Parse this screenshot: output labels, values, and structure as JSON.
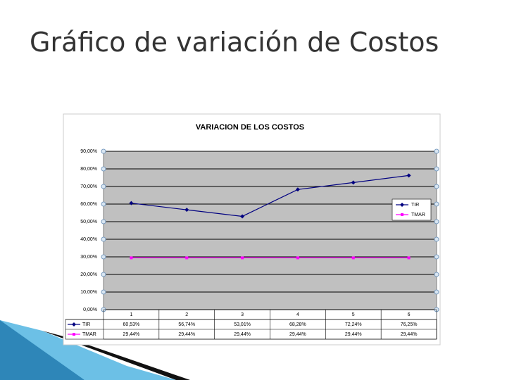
{
  "title": "Gráfico de variación de Costos",
  "chart_data": {
    "type": "line",
    "title": "VARIACION DE LOS COSTOS",
    "categories": [
      "1",
      "2",
      "3",
      "4",
      "5",
      "6"
    ],
    "series": [
      {
        "name": "TIR",
        "color": "#000080",
        "marker": "diamond",
        "values": [
          60.53,
          56.74,
          53.01,
          68.28,
          72.24,
          76.25
        ],
        "value_labels": [
          "60,53%",
          "56,74%",
          "53,01%",
          "68,28%",
          "72,24%",
          "76,25%"
        ]
      },
      {
        "name": "TMAR",
        "color": "#ff00ff",
        "marker": "square",
        "values": [
          29.44,
          29.44,
          29.44,
          29.44,
          29.44,
          29.44
        ],
        "value_labels": [
          "29,44%",
          "29,44%",
          "29,44%",
          "29,44%",
          "29,44%",
          "29,44%"
        ]
      }
    ],
    "ylim": [
      0,
      90
    ],
    "yticks": [
      {
        "value": 0,
        "label": "0,00%"
      },
      {
        "value": 10,
        "label": "10,00%"
      },
      {
        "value": 20,
        "label": "20,00%"
      },
      {
        "value": 30,
        "label": "30,00%"
      },
      {
        "value": 40,
        "label": "40,00%"
      },
      {
        "value": 50,
        "label": "50,00%"
      },
      {
        "value": 60,
        "label": "60,00%"
      },
      {
        "value": 70,
        "label": "70,00%"
      },
      {
        "value": 80,
        "label": "80,00%"
      },
      {
        "value": 90,
        "label": "90,00%"
      }
    ],
    "grid": true,
    "legend": "right",
    "data_table": true
  }
}
